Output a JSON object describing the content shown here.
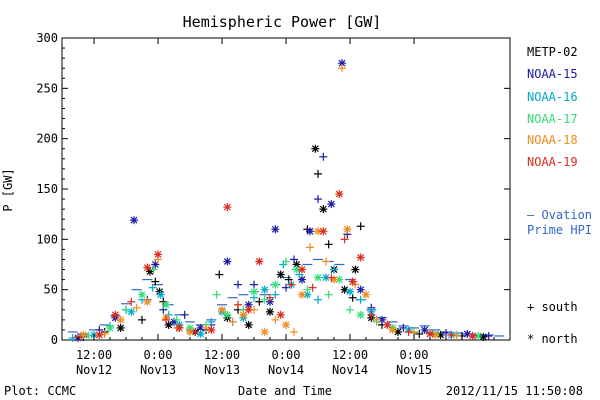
{
  "chart_data": {
    "type": "scatter",
    "title": "Hemispheric Power [GW]",
    "xlabel": "Date and Time",
    "ylabel": "P [GW]",
    "ylim": [
      0,
      300
    ],
    "yticks": [
      0,
      50,
      100,
      150,
      200,
      250,
      300
    ],
    "xlim_hours": [
      -18,
      66
    ],
    "xticks": [
      {
        "h": -12,
        "time": "12:00",
        "date": "Nov12"
      },
      {
        "h": 0,
        "time": "0:00",
        "date": "Nov13"
      },
      {
        "h": 12,
        "time": "12:00",
        "date": "Nov13"
      },
      {
        "h": 24,
        "time": "0:00",
        "date": "Nov14"
      },
      {
        "h": 36,
        "time": "12:00",
        "date": "Nov14"
      },
      {
        "h": 48,
        "time": "0:00",
        "date": "Nov15"
      }
    ],
    "hemisphere_legend": {
      "south": "+ south",
      "north": "* north"
    },
    "series": [
      {
        "name": "METP-02",
        "color": "#000000",
        "points": [
          [
            -14,
            3,
            "s"
          ],
          [
            -10,
            8,
            "s"
          ],
          [
            -7,
            12,
            "n"
          ],
          [
            -3,
            20,
            "s"
          ],
          [
            -1.5,
            68,
            "n"
          ],
          [
            -0.5,
            58,
            "s"
          ],
          [
            0.3,
            48,
            "n"
          ],
          [
            1,
            38,
            "s"
          ],
          [
            2,
            15,
            "n"
          ],
          [
            4,
            12,
            "s"
          ],
          [
            7,
            8,
            "n"
          ],
          [
            9,
            10,
            "s"
          ],
          [
            11.5,
            65,
            "s"
          ],
          [
            13,
            22,
            "n"
          ],
          [
            15,
            30,
            "s"
          ],
          [
            17,
            15,
            "n"
          ],
          [
            19,
            38,
            "s"
          ],
          [
            21,
            28,
            "n"
          ],
          [
            23,
            65,
            "n"
          ],
          [
            24.5,
            60,
            "s"
          ],
          [
            26,
            75,
            "n"
          ],
          [
            28,
            110,
            "s"
          ],
          [
            29.5,
            190,
            "n"
          ],
          [
            30,
            165,
            "s"
          ],
          [
            31,
            130,
            "n"
          ],
          [
            32,
            95,
            "s"
          ],
          [
            33,
            70,
            "n"
          ],
          [
            35,
            50,
            "n"
          ],
          [
            36.5,
            42,
            "s"
          ],
          [
            37,
            70,
            "n"
          ],
          [
            38,
            113,
            "s"
          ],
          [
            40,
            22,
            "n"
          ],
          [
            42,
            15,
            "s"
          ],
          [
            45,
            8,
            "n"
          ],
          [
            49,
            6,
            "s"
          ],
          [
            53,
            5,
            "n"
          ],
          [
            57,
            4,
            "s"
          ],
          [
            61,
            3,
            "n"
          ]
        ]
      },
      {
        "name": "NOAA-15",
        "color": "#1a1aa6",
        "points": [
          [
            -15,
            2,
            "n"
          ],
          [
            -11,
            10,
            "s"
          ],
          [
            -8,
            22,
            "n"
          ],
          [
            -6,
            30,
            "s"
          ],
          [
            -4.5,
            119,
            "n"
          ],
          [
            -2,
            40,
            "s"
          ],
          [
            -0.5,
            75,
            "n"
          ],
          [
            1,
            30,
            "s"
          ],
          [
            3,
            18,
            "n"
          ],
          [
            5,
            25,
            "s"
          ],
          [
            8,
            12,
            "n"
          ],
          [
            10,
            15,
            "s"
          ],
          [
            13,
            78,
            "n"
          ],
          [
            15,
            55,
            "s"
          ],
          [
            17,
            35,
            "n"
          ],
          [
            18,
            55,
            "s"
          ],
          [
            21,
            38,
            "n"
          ],
          [
            22,
            110,
            "n"
          ],
          [
            24,
            52,
            "s"
          ],
          [
            25.5,
            80,
            "s"
          ],
          [
            27,
            60,
            "n"
          ],
          [
            28.5,
            108,
            "n"
          ],
          [
            30,
            140,
            "s"
          ],
          [
            31,
            182,
            "s"
          ],
          [
            32.5,
            135,
            "n"
          ],
          [
            34.5,
            275,
            "n"
          ],
          [
            35.5,
            105,
            "s"
          ],
          [
            38,
            50,
            "n"
          ],
          [
            40,
            32,
            "s"
          ],
          [
            42,
            20,
            "n"
          ],
          [
            46,
            12,
            "s"
          ],
          [
            50,
            10,
            "n"
          ],
          [
            54,
            7,
            "s"
          ],
          [
            58,
            6,
            "n"
          ],
          [
            62,
            4,
            "s"
          ]
        ]
      },
      {
        "name": "NOAA-16",
        "color": "#00aacc",
        "points": [
          [
            -16,
            2,
            "s"
          ],
          [
            -12,
            5,
            "n"
          ],
          [
            -9,
            14,
            "s"
          ],
          [
            -5,
            28,
            "n"
          ],
          [
            -3,
            40,
            "s"
          ],
          [
            -1,
            52,
            "s"
          ],
          [
            0.5,
            45,
            "n"
          ],
          [
            2,
            25,
            "s"
          ],
          [
            4,
            15,
            "n"
          ],
          [
            6,
            10,
            "s"
          ],
          [
            8,
            6,
            "n"
          ],
          [
            10,
            18,
            "s"
          ],
          [
            12,
            28,
            "n"
          ],
          [
            14,
            18,
            "s"
          ],
          [
            16,
            22,
            "n"
          ],
          [
            18,
            42,
            "s"
          ],
          [
            20,
            50,
            "n"
          ],
          [
            22,
            45,
            "s"
          ],
          [
            23.5,
            75,
            "s"
          ],
          [
            25,
            55,
            "n"
          ],
          [
            26.5,
            65,
            "s"
          ],
          [
            28,
            45,
            "n"
          ],
          [
            30,
            40,
            "s"
          ],
          [
            31.5,
            62,
            "n"
          ],
          [
            33,
            70,
            "s"
          ],
          [
            36,
            48,
            "n"
          ],
          [
            38,
            40,
            "s"
          ],
          [
            40,
            28,
            "n"
          ],
          [
            43,
            15,
            "s"
          ],
          [
            47,
            10,
            "n"
          ],
          [
            51,
            7,
            "s"
          ],
          [
            55,
            5,
            "n"
          ],
          [
            59,
            4,
            "s"
          ]
        ]
      },
      {
        "name": "NOAA-17",
        "color": "#33dd77",
        "points": [
          [
            -13,
            4,
            "s"
          ],
          [
            -9,
            12,
            "n"
          ],
          [
            -6,
            30,
            "s"
          ],
          [
            -3,
            45,
            "n"
          ],
          [
            -0.8,
            70,
            "s"
          ],
          [
            1.5,
            35,
            "n"
          ],
          [
            3.5,
            20,
            "s"
          ],
          [
            6,
            12,
            "n"
          ],
          [
            9,
            15,
            "s"
          ],
          [
            11,
            45,
            "s"
          ],
          [
            13,
            25,
            "n"
          ],
          [
            16,
            30,
            "s"
          ],
          [
            18,
            48,
            "n"
          ],
          [
            20,
            40,
            "s"
          ],
          [
            22,
            55,
            "n"
          ],
          [
            24,
            78,
            "s"
          ],
          [
            26,
            70,
            "n"
          ],
          [
            28,
            50,
            "s"
          ],
          [
            30,
            62,
            "n"
          ],
          [
            32,
            45,
            "s"
          ],
          [
            34,
            60,
            "n"
          ],
          [
            36,
            30,
            "s"
          ],
          [
            38,
            25,
            "n"
          ],
          [
            41,
            18,
            "s"
          ],
          [
            44,
            12,
            "n"
          ],
          [
            48,
            8,
            "s"
          ],
          [
            52,
            6,
            "n"
          ],
          [
            56,
            5,
            "s"
          ],
          [
            60,
            4,
            "n"
          ]
        ]
      },
      {
        "name": "NOAA-18",
        "color": "#f08c1e",
        "points": [
          [
            -14,
            5,
            "n"
          ],
          [
            -10,
            6,
            "s"
          ],
          [
            -7,
            20,
            "n"
          ],
          [
            -4,
            32,
            "s"
          ],
          [
            -2,
            38,
            "n"
          ],
          [
            0,
            80,
            "s"
          ],
          [
            1.5,
            22,
            "n"
          ],
          [
            3.5,
            12,
            "s"
          ],
          [
            6,
            8,
            "n"
          ],
          [
            9,
            12,
            "s"
          ],
          [
            12,
            30,
            "n"
          ],
          [
            14,
            18,
            "s"
          ],
          [
            16,
            25,
            "n"
          ],
          [
            18,
            30,
            "s"
          ],
          [
            20,
            8,
            "n"
          ],
          [
            22,
            20,
            "s"
          ],
          [
            24,
            15,
            "n"
          ],
          [
            25.5,
            8,
            "s"
          ],
          [
            27,
            45,
            "n"
          ],
          [
            28.5,
            92,
            "s"
          ],
          [
            30,
            108,
            "n"
          ],
          [
            31.5,
            78,
            "s"
          ],
          [
            33,
            60,
            "n"
          ],
          [
            34.5,
            270,
            "s"
          ],
          [
            35.5,
            110,
            "n"
          ],
          [
            37,
            55,
            "s"
          ],
          [
            39,
            45,
            "n"
          ],
          [
            41,
            20,
            "s"
          ],
          [
            44,
            10,
            "n"
          ],
          [
            48,
            7,
            "s"
          ],
          [
            52,
            5,
            "n"
          ],
          [
            56,
            4,
            "s"
          ]
        ]
      },
      {
        "name": "NOAA-19",
        "color": "#dd2a1e",
        "points": [
          [
            -15,
            3,
            "s"
          ],
          [
            -11,
            5,
            "n"
          ],
          [
            -8,
            25,
            "n"
          ],
          [
            -5,
            38,
            "s"
          ],
          [
            -2,
            72,
            "n"
          ],
          [
            0,
            85,
            "n"
          ],
          [
            1.5,
            20,
            "s"
          ],
          [
            4,
            12,
            "n"
          ],
          [
            7,
            8,
            "s"
          ],
          [
            10,
            10,
            "n"
          ],
          [
            13,
            132,
            "n"
          ],
          [
            15,
            35,
            "s"
          ],
          [
            17,
            30,
            "n"
          ],
          [
            19,
            78,
            "n"
          ],
          [
            21,
            42,
            "s"
          ],
          [
            23,
            25,
            "n"
          ],
          [
            25,
            55,
            "s"
          ],
          [
            27,
            70,
            "n"
          ],
          [
            29,
            52,
            "s"
          ],
          [
            31,
            108,
            "n"
          ],
          [
            32.5,
            62,
            "s"
          ],
          [
            34,
            145,
            "n"
          ],
          [
            35,
            100,
            "s"
          ],
          [
            36.5,
            58,
            "n"
          ],
          [
            38,
            82,
            "n"
          ],
          [
            40,
            25,
            "s"
          ],
          [
            43,
            15,
            "n"
          ],
          [
            47,
            8,
            "s"
          ],
          [
            51,
            6,
            "n"
          ],
          [
            55,
            5,
            "s"
          ],
          [
            59,
            4,
            "n"
          ]
        ]
      },
      {
        "name": "Ovation Prime HPI",
        "color": "#3366cc",
        "points": [
          [
            -16,
            8
          ],
          [
            -14,
            6
          ],
          [
            -12,
            10
          ],
          [
            -10,
            15
          ],
          [
            -8,
            24
          ],
          [
            -6,
            36
          ],
          [
            -4,
            50
          ],
          [
            -2,
            60
          ],
          [
            0,
            55
          ],
          [
            2,
            35
          ],
          [
            4,
            25
          ],
          [
            6,
            18
          ],
          [
            8,
            15
          ],
          [
            10,
            20
          ],
          [
            12,
            35
          ],
          [
            14,
            42
          ],
          [
            16,
            45
          ],
          [
            18,
            48
          ],
          [
            20,
            45
          ],
          [
            22,
            55
          ],
          [
            24,
            62
          ],
          [
            26,
            70
          ],
          [
            28,
            75
          ],
          [
            30,
            80
          ],
          [
            32,
            78
          ],
          [
            34,
            75
          ],
          [
            36,
            60
          ],
          [
            38,
            40
          ],
          [
            40,
            30
          ],
          [
            42,
            22
          ],
          [
            44,
            18
          ],
          [
            46,
            14
          ],
          [
            48,
            12
          ],
          [
            50,
            14
          ],
          [
            52,
            10
          ],
          [
            54,
            8
          ],
          [
            56,
            7
          ],
          [
            58,
            6
          ],
          [
            60,
            5
          ],
          [
            62,
            5
          ],
          [
            64,
            4
          ]
        ]
      }
    ]
  },
  "legend": {
    "metp02": "METP-02",
    "noaa15": "NOAA-15",
    "noaa16": "NOAA-16",
    "noaa17": "NOAA-17",
    "noaa18": "NOAA-18",
    "noaa19": "NOAA-19",
    "ovation_line1": "— Ovation",
    "ovation_line2": "Prime HPI"
  },
  "footer": {
    "source": "Plot: CCMC",
    "timestamp": "2012/11/15 11:50:08"
  }
}
